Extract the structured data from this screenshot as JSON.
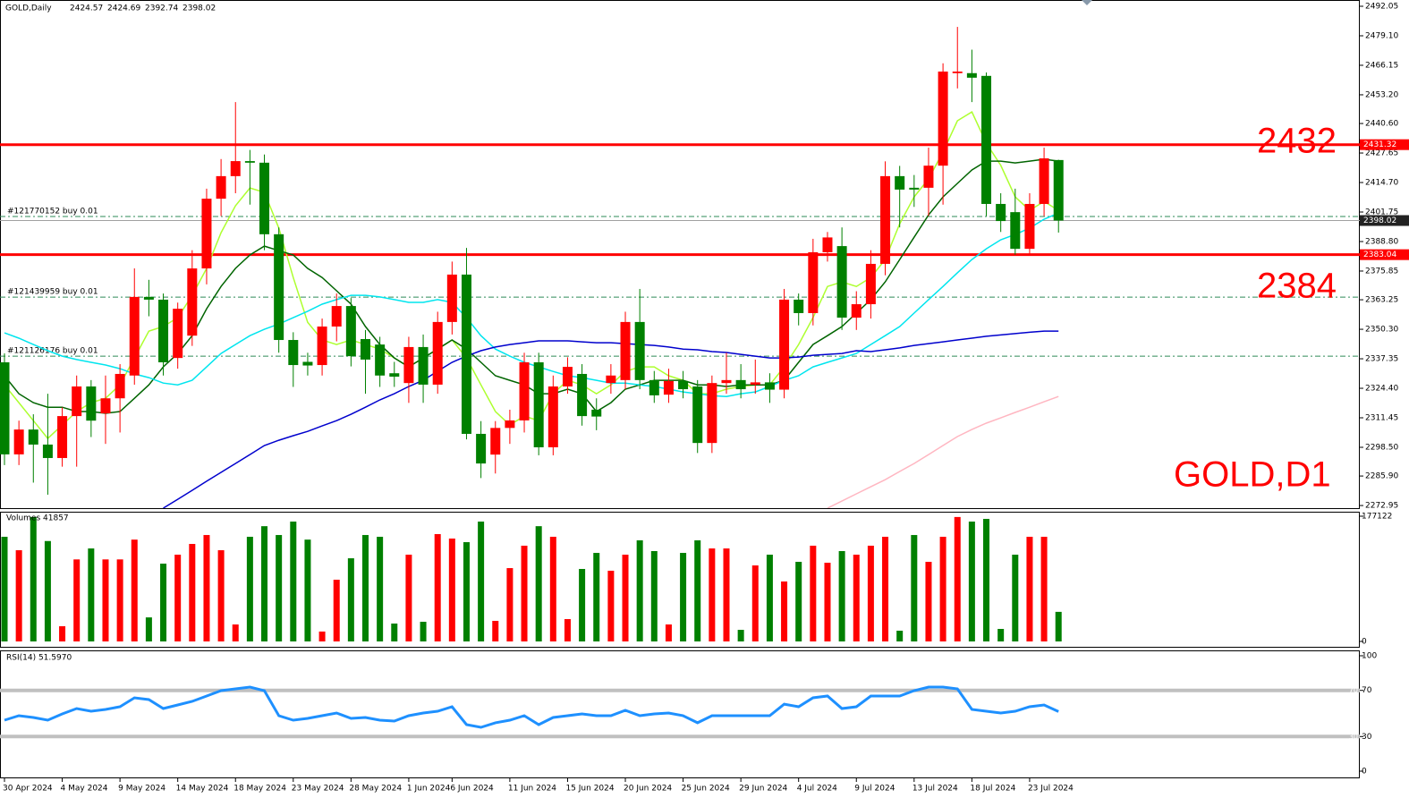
{
  "chart_data": {
    "type": "candlestick",
    "title": "GOLD,Daily",
    "ohlc_header": [
      2424.57,
      2424.69,
      2392.74,
      2398.02
    ],
    "up_color": "#ff0000",
    "down_color": "#008000",
    "categories": [
      "30 Apr 2024",
      null,
      null,
      null,
      "4 May 2024",
      null,
      null,
      null,
      "9 May 2024",
      null,
      null,
      null,
      "14 May 2024",
      null,
      null,
      null,
      "18 May 2024",
      null,
      null,
      null,
      "23 May 2024",
      null,
      null,
      null,
      "28 May 2024",
      null,
      null,
      null,
      "1 Jun 2024",
      null,
      null,
      "6 Jun 2024",
      null,
      null,
      null,
      "11 Jun 2024",
      null,
      null,
      null,
      "15 Jun 2024",
      null,
      null,
      null,
      "20 Jun 2024",
      null,
      null,
      null,
      "25 Jun 2024",
      null,
      null,
      null,
      "29 Jun 2024",
      null,
      null,
      null,
      "4 Jul 2024",
      null,
      null,
      null,
      "9 Jul 2024",
      null,
      null,
      null,
      "13 Jul 2024",
      null,
      null,
      null,
      "18 Jul 2024",
      null,
      null,
      null,
      "23 Jul 2024",
      null,
      null
    ],
    "open": [
      2335.8,
      2295.4,
      2306.3,
      2299.7,
      2293.8,
      2312.2,
      2325.2,
      2313.4,
      2320.0,
      2330.0,
      2364.5,
      2363.3,
      2337.7,
      2347.5,
      2377.0,
      2407.6,
      2417.5,
      2424.1,
      2423.4,
      2392.0,
      2345.6,
      2336.0,
      2334.6,
      2351.5,
      2360.5,
      2346.0,
      2343.6,
      2331.0,
      2326.7,
      2342.5,
      2326.0,
      2353.5,
      2374.3,
      2304.4,
      2295.3,
      2307.0,
      2310.3,
      2335.8,
      2298.5,
      2325.2,
      2330.7,
      2315.0,
      2326.7,
      2328.0,
      2353.5,
      2328.0,
      2321.6,
      2327.6,
      2325.2,
      2300.4,
      2326.7,
      2328.0,
      2326.0,
      2327.0,
      2323.8,
      2363.3,
      2357.4,
      2384.1,
      2386.8,
      2355.4,
      2361.3,
      2379.0,
      2417.5,
      2412.4,
      2412.4,
      2422.1,
      2462.7,
      2462.7,
      2461.5,
      2405.3,
      2401.7,
      2385.6,
      2405.3,
      2424.57
    ],
    "high": [
      2339.7,
      2310.2,
      2313.0,
      2322.0,
      2316.0,
      2330.0,
      2328.0,
      2330.0,
      2335.0,
      2377.0,
      2372.0,
      2366.0,
      2362.0,
      2385.0,
      2412.0,
      2425.0,
      2450.0,
      2429.0,
      2427.0,
      2395.0,
      2349.0,
      2340.0,
      2355.0,
      2366.0,
      2364.0,
      2350.0,
      2347.0,
      2336.0,
      2347.0,
      2348.0,
      2358.0,
      2380.0,
      2386.0,
      2310.0,
      2310.0,
      2315.0,
      2340.0,
      2340.0,
      2330.0,
      2338.0,
      2335.0,
      2320.0,
      2335.0,
      2358.0,
      2368.0,
      2332.0,
      2333.0,
      2332.0,
      2328.0,
      2330.0,
      2340.0,
      2335.0,
      2337.0,
      2331.0,
      2368.0,
      2366.0,
      2390.0,
      2393.0,
      2395.0,
      2367.0,
      2385.0,
      2424.0,
      2422.0,
      2418.0,
      2430.0,
      2467.0,
      2483.0,
      2473.0,
      2463.0,
      2410.0,
      2412.0,
      2410.0,
      2430.0,
      2424.69
    ],
    "low": [
      2290.7,
      2290.7,
      2283.0,
      2277.7,
      2290.0,
      2290.0,
      2303.0,
      2300.0,
      2305.0,
      2326.0,
      2356.0,
      2330.0,
      2333.0,
      2343.0,
      2370.0,
      2400.0,
      2410.0,
      2405.0,
      2385.0,
      2340.0,
      2325.0,
      2330.0,
      2330.0,
      2345.0,
      2334.0,
      2322.0,
      2325.0,
      2325.0,
      2318.0,
      2318.0,
      2322.0,
      2348.0,
      2302.0,
      2285.0,
      2287.0,
      2300.0,
      2305.0,
      2295.0,
      2295.0,
      2322.0,
      2308.0,
      2306.0,
      2322.0,
      2324.0,
      2324.0,
      2318.0,
      2318.0,
      2320.0,
      2296.0,
      2296.0,
      2322.0,
      2320.0,
      2322.0,
      2318.0,
      2320.0,
      2352.0,
      2352.0,
      2380.0,
      2350.0,
      2350.0,
      2355.0,
      2374.0,
      2395.0,
      2404.0,
      2400.0,
      2405.0,
      2456.0,
      2450.0,
      2400.0,
      2393.0,
      2383.0,
      2383.0,
      2400.0,
      2392.74
    ],
    "close": [
      2295.4,
      2306.3,
      2299.7,
      2293.8,
      2312.2,
      2325.2,
      2310.2,
      2320.0,
      2330.7,
      2364.5,
      2363.3,
      2335.8,
      2359.3,
      2377.0,
      2407.6,
      2417.5,
      2424.1,
      2423.4,
      2392.0,
      2345.6,
      2334.6,
      2334.4,
      2351.5,
      2360.5,
      2338.5,
      2337.0,
      2330.0,
      2329.5,
      2342.5,
      2326.0,
      2353.5,
      2374.3,
      2304.4,
      2291.4,
      2307.0,
      2310.3,
      2335.8,
      2298.5,
      2325.2,
      2333.8,
      2312.2,
      2312.0,
      2330.0,
      2353.5,
      2328.0,
      2321.3,
      2327.6,
      2324.0,
      2300.4,
      2326.7,
      2328.0,
      2324.0,
      2327.0,
      2323.8,
      2363.3,
      2357.4,
      2384.1,
      2390.6,
      2355.4,
      2361.3,
      2379.0,
      2417.5,
      2411.6,
      2411.6,
      2422.1,
      2463.4,
      2463.4,
      2460.7,
      2405.3,
      2397.8,
      2385.6,
      2405.3,
      2425.3,
      2398.02
    ],
    "moving_averages": [
      {
        "color": "#adff2f",
        "values": [
          2325.9,
          2318.1,
          2310.2,
          2302.4,
          2308.3,
          2314.2,
          2318.1,
          2320.0,
          2325.9,
          2337.7,
          2349.5,
          2351.5,
          2355.4,
          2365.2,
          2377.0,
          2392.7,
          2404.5,
          2412.3,
          2410.4,
          2394.7,
          2373.0,
          2353.4,
          2345.6,
          2343.6,
          2345.6,
          2343.6,
          2341.6,
          2337.7,
          2333.8,
          2337.7,
          2341.6,
          2345.6,
          2337.7,
          2325.9,
          2314.2,
          2308.3,
          2312.2,
          2310.2,
          2322.0,
          2327.9,
          2325.9,
          2322.0,
          2325.9,
          2331.8,
          2333.8,
          2333.8,
          2329.9,
          2327.9,
          2322.0,
          2322.0,
          2324.0,
          2325.2,
          2325.9,
          2325.9,
          2333.8,
          2343.6,
          2355.4,
          2369.1,
          2371.1,
          2369.1,
          2373.0,
          2380.9,
          2396.6,
          2408.4,
          2416.3,
          2428.1,
          2441.8,
          2445.7,
          2432.0,
          2422.2,
          2408.4,
          2402.5,
          2406.4,
          2402.5
        ]
      },
      {
        "color": "#006400",
        "values": [
          2329.9,
          2322.0,
          2318.1,
          2316.1,
          2316.1,
          2314.2,
          2314.2,
          2313.4,
          2314.2,
          2320.0,
          2325.9,
          2333.8,
          2339.7,
          2347.5,
          2359.3,
          2369.1,
          2377.0,
          2382.9,
          2386.8,
          2384.8,
          2382.9,
          2377.0,
          2373.0,
          2367.2,
          2361.3,
          2351.5,
          2343.6,
          2337.7,
          2333.8,
          2337.7,
          2341.6,
          2345.6,
          2341.6,
          2335.8,
          2329.9,
          2327.9,
          2325.9,
          2322.0,
          2322.0,
          2324.0,
          2322.0,
          2314.2,
          2318.1,
          2324.0,
          2325.9,
          2327.9,
          2327.9,
          2327.9,
          2325.9,
          2325.9,
          2325.2,
          2325.9,
          2325.9,
          2325.9,
          2327.9,
          2335.8,
          2343.6,
          2347.5,
          2351.5,
          2357.4,
          2363.3,
          2371.1,
          2380.9,
          2390.7,
          2400.5,
          2408.4,
          2414.3,
          2420.2,
          2424.1,
          2424.1,
          2423.3,
          2424.1,
          2424.9,
          2424.1
        ]
      },
      {
        "color": "#00e5ee",
        "values": [
          2348.7,
          2346.4,
          2343.6,
          2340.9,
          2338.5,
          2337.0,
          2335.8,
          2334.6,
          2333.0,
          2330.7,
          2329.1,
          2326.7,
          2325.9,
          2327.9,
          2333.8,
          2339.7,
          2343.6,
          2347.5,
          2350.3,
          2352.6,
          2355.4,
          2358.2,
          2361.3,
          2363.3,
          2365.2,
          2365.2,
          2364.5,
          2363.3,
          2362.1,
          2362.1,
          2363.3,
          2362.1,
          2355.4,
          2347.5,
          2341.6,
          2338.5,
          2335.8,
          2333.8,
          2331.8,
          2329.9,
          2329.1,
          2327.9,
          2326.7,
          2326.7,
          2325.9,
          2325.2,
          2324.0,
          2322.8,
          2322.0,
          2321.2,
          2320.8,
          2322.0,
          2322.8,
          2325.2,
          2327.9,
          2329.9,
          2333.8,
          2335.8,
          2337.7,
          2339.7,
          2343.6,
          2347.5,
          2351.5,
          2357.4,
          2363.3,
          2369.1,
          2375.1,
          2380.9,
          2385.6,
          2389.6,
          2391.9,
          2394.7,
          2398.6,
          2401.3
        ]
      },
      {
        "color": "#0000cd",
        "values": [
          null,
          null,
          null,
          null,
          null,
          null,
          null,
          null,
          null,
          null,
          null,
          2271.8,
          2275.7,
          2279.6,
          2283.6,
          2287.5,
          2291.4,
          2295.3,
          2299.3,
          2301.6,
          2303.6,
          2305.5,
          2307.9,
          2310.2,
          2313.0,
          2316.1,
          2319.3,
          2322.0,
          2325.2,
          2327.9,
          2331.9,
          2335.8,
          2338.5,
          2340.9,
          2342.5,
          2343.6,
          2344.4,
          2345.2,
          2345.2,
          2345.2,
          2344.8,
          2344.4,
          2344.4,
          2344.0,
          2343.6,
          2343.2,
          2342.5,
          2341.6,
          2341.3,
          2340.5,
          2340.1,
          2339.3,
          2338.5,
          2337.7,
          2337.7,
          2338.1,
          2338.9,
          2339.3,
          2339.7,
          2340.9,
          2340.5,
          2341.3,
          2342.1,
          2343.2,
          2344.0,
          2344.8,
          2345.6,
          2346.4,
          2347.2,
          2347.8,
          2348.4,
          2349.0,
          2349.5,
          2349.5
        ]
      },
      {
        "color": "#ffb6c1",
        "values": [
          null,
          null,
          null,
          null,
          null,
          null,
          null,
          null,
          null,
          null,
          null,
          null,
          null,
          null,
          null,
          null,
          null,
          null,
          null,
          null,
          null,
          null,
          null,
          null,
          null,
          null,
          null,
          null,
          null,
          null,
          null,
          null,
          null,
          null,
          null,
          null,
          null,
          null,
          null,
          null,
          null,
          null,
          null,
          null,
          null,
          null,
          null,
          null,
          null,
          null,
          null,
          null,
          null,
          null,
          null,
          null,
          null,
          2271.8,
          2274.9,
          2278.1,
          2281.2,
          2284.3,
          2287.9,
          2291.4,
          2295.3,
          2299.3,
          2303.2,
          2306.3,
          2309.1,
          2311.4,
          2313.8,
          2316.1,
          2318.5,
          2320.8
        ]
      }
    ],
    "ylim": [
      2271.8,
      2494.8
    ],
    "yticks": [
      2492.05,
      {
        "value": 2479.1,
        "label": "2479.10"
      },
      2466.15,
      {
        "value": 2453.2,
        "label": "2453.20"
      },
      {
        "value": 2440.6,
        "label": "2440.60"
      },
      2427.65,
      {
        "value": 2414.7,
        "label": "2414.70"
      },
      2401.75,
      {
        "value": 2388.8,
        "label": "2388.80"
      },
      2375.85,
      2363.25,
      {
        "value": 2350.3,
        "label": "2350.30"
      },
      2337.35,
      {
        "value": 2324.4,
        "label": "2324.40"
      },
      2311.45,
      {
        "value": 2298.5,
        "label": "2298.50"
      },
      {
        "value": 2285.9,
        "label": "2285.90"
      },
      2272.95
    ],
    "hlines": [
      {
        "value": 2431.32,
        "color": "#ff0000"
      },
      {
        "value": 2383.04,
        "color": "#ff0000"
      }
    ],
    "bid_price": 2398.02,
    "orders": [
      {
        "label": "#121770152 buy 0.01",
        "price": 2399.8
      },
      {
        "label": "#121439959 buy 0.01",
        "price": 2364.4
      },
      {
        "label": "#121126176 buy 0.01",
        "price": 2338.5
      }
    ],
    "annotations": [
      "2432",
      "2384",
      "GOLD,D1"
    ],
    "volume": {
      "title": "Volumes 41857",
      "ylim": [
        0,
        177122
      ],
      "yticks": [
        0,
        177122
      ],
      "values": [
        148000,
        129000,
        176000,
        142000,
        21500,
        116000,
        131500,
        116000,
        116000,
        144000,
        34000,
        110000,
        122700,
        137900,
        150500,
        129000,
        24000,
        148000,
        163000,
        150500,
        169500,
        144000,
        14000,
        87300,
        117600,
        150500,
        148000,
        25300,
        122700,
        27800,
        151800,
        145500,
        140400,
        169500,
        29100,
        103700,
        135400,
        163000,
        148000,
        31600,
        102500,
        125200,
        100000,
        122700,
        143000,
        127800,
        24000,
        125200,
        143000,
        131500,
        131500,
        16400,
        107500,
        122700,
        84800,
        112600,
        135400,
        111300,
        127800,
        122700,
        135400,
        148000,
        15200,
        150500,
        112600,
        148000,
        176000,
        169500,
        173300,
        17700,
        122700,
        148000,
        148000,
        41857
      ]
    },
    "rsi": {
      "title": "RSI(14) 51.5970",
      "color": "#1e90ff",
      "ylim": [
        0,
        100
      ],
      "yticks": [
        0,
        30,
        70,
        100
      ],
      "levels": [
        30,
        70
      ],
      "values": [
        44.2,
        48.1,
        46.5,
        44.2,
        49.6,
        54.3,
        51.9,
        53.5,
        55.8,
        63.6,
        62.0,
        54.3,
        57.4,
        60.5,
        65.1,
        69.8,
        71.3,
        72.9,
        69.8,
        48.1,
        44.2,
        45.7,
        48.1,
        50.4,
        45.7,
        46.5,
        44.2,
        43.4,
        48.1,
        50.4,
        51.9,
        55.8,
        40.3,
        38.0,
        41.9,
        44.2,
        48.1,
        40.3,
        46.5,
        48.1,
        49.6,
        48.1,
        48.1,
        52.7,
        48.1,
        49.6,
        50.4,
        48.1,
        41.9,
        48.1,
        48.1,
        48.1,
        48.1,
        48.1,
        58.1,
        55.8,
        63.6,
        65.1,
        54.3,
        55.8,
        65.1,
        65.1,
        65.1,
        69.8,
        72.9,
        72.9,
        71.3,
        53.5,
        51.9,
        50.4,
        51.9,
        55.8,
        57.4,
        51.6
      ]
    }
  }
}
